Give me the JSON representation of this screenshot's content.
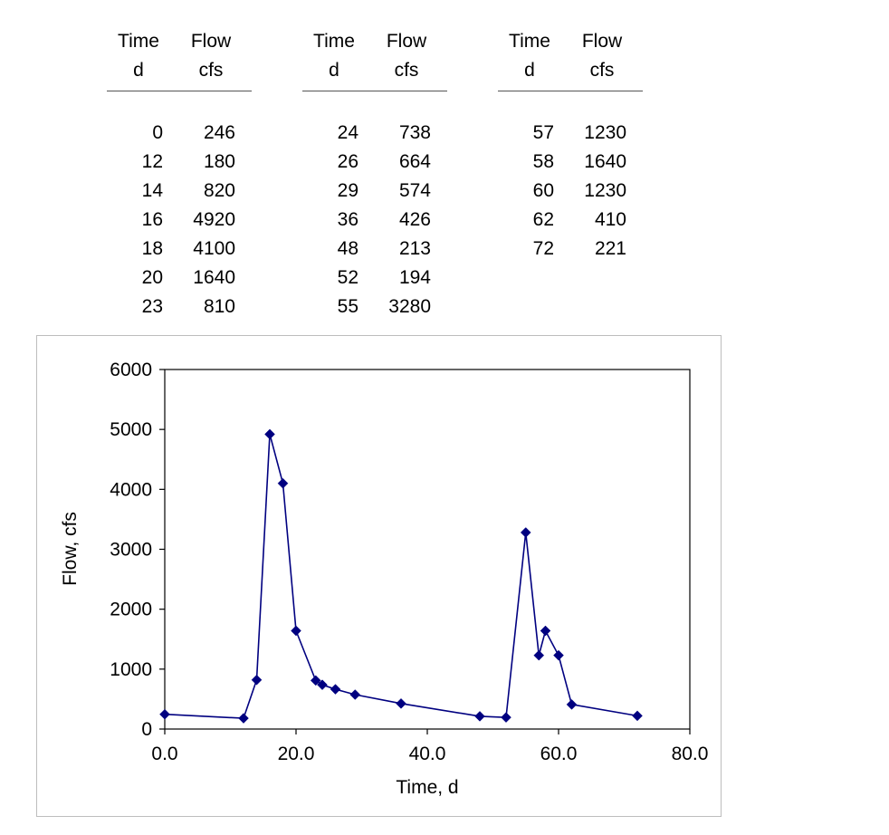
{
  "table": {
    "header_time": "Time",
    "header_time_unit": "d",
    "header_flow": "Flow",
    "header_flow_unit": "cfs",
    "columns": [
      {
        "rows": [
          [
            "0",
            "246"
          ],
          [
            "12",
            "180"
          ],
          [
            "14",
            "820"
          ],
          [
            "16",
            "4920"
          ],
          [
            "18",
            "4100"
          ],
          [
            "20",
            "1640"
          ],
          [
            "23",
            "810"
          ]
        ]
      },
      {
        "rows": [
          [
            "24",
            "738"
          ],
          [
            "26",
            "664"
          ],
          [
            "29",
            "574"
          ],
          [
            "36",
            "426"
          ],
          [
            "48",
            "213"
          ],
          [
            "52",
            "194"
          ],
          [
            "55",
            "3280"
          ]
        ]
      },
      {
        "rows": [
          [
            "57",
            "1230"
          ],
          [
            "58",
            "1640"
          ],
          [
            "60",
            "1230"
          ],
          [
            "62",
            "410"
          ],
          [
            "72",
            "221"
          ]
        ]
      }
    ]
  },
  "chart_data": {
    "type": "line",
    "xlabel": "Time, d",
    "ylabel": "Flow, cfs",
    "xlim": [
      0,
      80
    ],
    "ylim": [
      0,
      6000
    ],
    "x_ticks": [
      "0.0",
      "20.0",
      "40.0",
      "60.0",
      "80.0"
    ],
    "y_ticks": [
      "0",
      "1000",
      "2000",
      "3000",
      "4000",
      "5000",
      "6000"
    ],
    "grid": false,
    "marker": "diamond",
    "series_color": "#000080",
    "series": [
      {
        "x": [
          0,
          12,
          14,
          16,
          18,
          20,
          23,
          24,
          26,
          29,
          36,
          48,
          52,
          55,
          57,
          58,
          60,
          62,
          72
        ],
        "y": [
          246,
          180,
          820,
          4920,
          4100,
          1640,
          810,
          738,
          664,
          574,
          426,
          213,
          194,
          3280,
          1230,
          1640,
          1230,
          410,
          221
        ]
      }
    ]
  }
}
